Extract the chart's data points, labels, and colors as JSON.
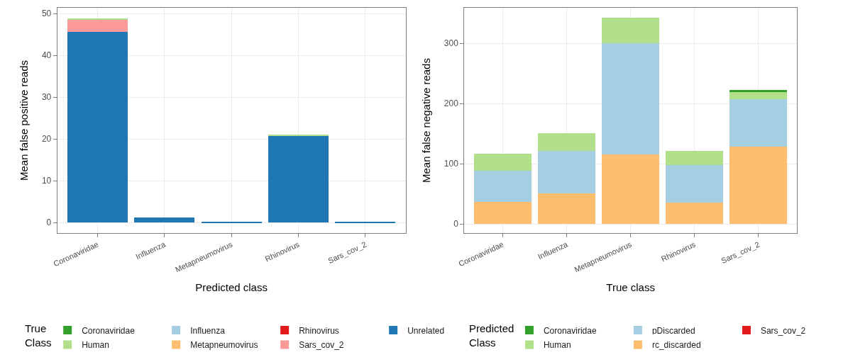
{
  "chart_data": [
    {
      "type": "bar",
      "stacked": true,
      "xlabel": "Predicted class",
      "ylabel": "Mean false positive reads",
      "legend_title": "True Class",
      "legend": "bottom",
      "grid": true,
      "categories": [
        "Coronaviridae",
        "Influenza",
        "Metapneumovirus",
        "Rhinovirus",
        "Sars_cov_2"
      ],
      "ylim": [
        -2.5,
        51.4
      ],
      "yticks": [
        0,
        10,
        20,
        30,
        40,
        50
      ],
      "series": [
        {
          "name": "Unrelated",
          "color": "#1f78b4",
          "values": [
            45.6,
            1.2,
            0.1,
            20.8,
            0.1
          ]
        },
        {
          "name": "Sars_cov_2",
          "color": "#fb9a99",
          "values": [
            3.0,
            0,
            0,
            0,
            0
          ]
        },
        {
          "name": "Rhinovirus",
          "color": "#e31a1c",
          "values": [
            0,
            0,
            0,
            0,
            0
          ]
        },
        {
          "name": "Metapneumovirus",
          "color": "#fdbf6f",
          "values": [
            0,
            0,
            0,
            0,
            0
          ]
        },
        {
          "name": "Influenza",
          "color": "#a6cee3",
          "values": [
            0,
            0,
            0,
            0,
            0
          ]
        },
        {
          "name": "Human",
          "color": "#b2df8a",
          "values": [
            0.3,
            0,
            0,
            0.3,
            0
          ]
        },
        {
          "name": "Coronaviridae",
          "color": "#33a02c",
          "values": [
            0,
            0,
            0,
            0,
            0
          ]
        }
      ]
    },
    {
      "type": "bar",
      "stacked": true,
      "xlabel": "True class",
      "ylabel": "Mean false negative reads",
      "legend_title": "Predicted Class",
      "legend": "bottom",
      "grid": true,
      "categories": [
        "Coronaviridae",
        "Influenza",
        "Metapneumovirus",
        "Rhinovirus",
        "Sars_cov_2"
      ],
      "ylim": [
        -15,
        359
      ],
      "yticks": [
        0,
        100,
        200,
        300
      ],
      "series": [
        {
          "name": "Sars_cov_2",
          "color": "#e31a1c",
          "values": [
            0,
            0,
            0,
            0,
            0
          ]
        },
        {
          "name": "rc_discarded",
          "color": "#fdbf6f",
          "values": [
            37,
            51,
            116,
            35,
            129
          ]
        },
        {
          "name": "pDiscarded",
          "color": "#a6cee3",
          "values": [
            52,
            70,
            184,
            63,
            78
          ]
        },
        {
          "name": "Human",
          "color": "#b2df8a",
          "values": [
            28,
            30,
            42,
            23,
            13
          ]
        },
        {
          "name": "Coronaviridae",
          "color": "#33a02c",
          "values": [
            0,
            0,
            0,
            0,
            2
          ]
        }
      ]
    }
  ]
}
